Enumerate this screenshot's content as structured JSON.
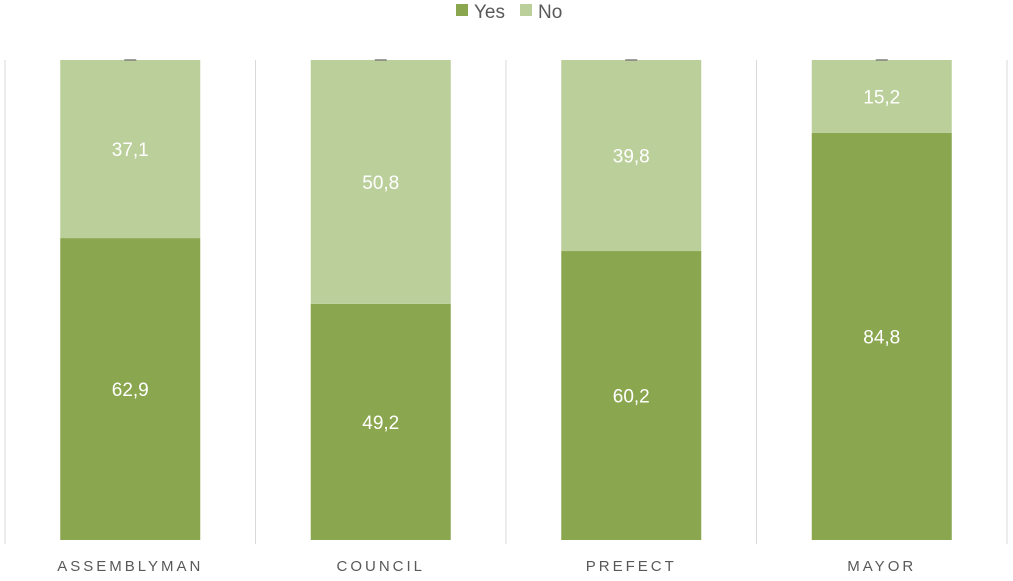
{
  "chart_data": {
    "type": "bar",
    "stacked": true,
    "categories": [
      "ASSEMBLYMAN",
      "COUNCIL",
      "PREFECT",
      "MAYOR"
    ],
    "series": [
      {
        "name": "Yes",
        "color": "#8aa64e",
        "values": [
          62.9,
          49.2,
          60.2,
          84.8
        ],
        "labels": [
          "62,9",
          "49,2",
          "60,2",
          "84,8"
        ]
      },
      {
        "name": "No",
        "color": "#bbcf9a",
        "values": [
          37.1,
          50.8,
          39.8,
          15.2
        ],
        "labels": [
          "37,1",
          "50,8",
          "39,8",
          "15,2"
        ]
      }
    ],
    "ylim": [
      0,
      100
    ],
    "legend_position": "top-center",
    "grid": "vertical separators"
  }
}
